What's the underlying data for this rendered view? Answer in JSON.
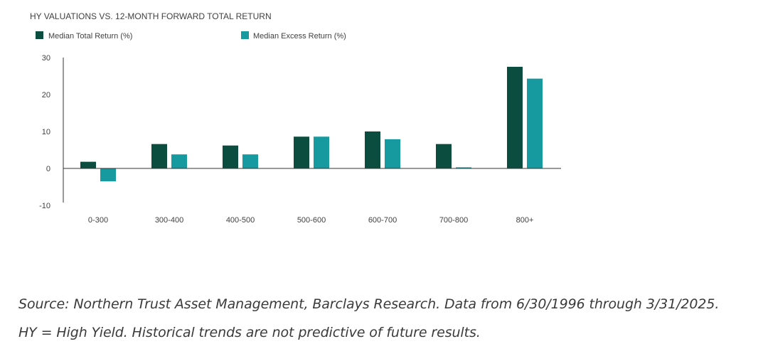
{
  "chart_data": {
    "type": "bar",
    "title": "HY VALUATIONS VS. 12-MONTH FORWARD TOTAL RETURN",
    "categories": [
      "0-300",
      "300-400",
      "400-500",
      "500-600",
      "600-700",
      "700-800",
      "800+"
    ],
    "series": [
      {
        "name": "Median Total Return (%)",
        "color": "#0b4d3e",
        "values": [
          1.8,
          6.6,
          6.2,
          8.6,
          10.0,
          6.6,
          27.5
        ]
      },
      {
        "name": "Median Excess Return (%)",
        "color": "#16999f",
        "values": [
          -3.5,
          3.8,
          3.8,
          8.6,
          7.9,
          0.3,
          24.3
        ]
      }
    ],
    "xlabel": "",
    "ylabel": "",
    "ylim": [
      -10,
      30
    ],
    "yticks": [
      30,
      20,
      10,
      0,
      -10
    ],
    "grid": false,
    "legend": "top-left"
  },
  "footnotes": {
    "line1": "Source: Northern Trust Asset Management, Barclays Research. Data from 6/30/1996 through 3/31/2025.",
    "line2": "HY = High Yield. Historical trends are not predictive of future results."
  }
}
